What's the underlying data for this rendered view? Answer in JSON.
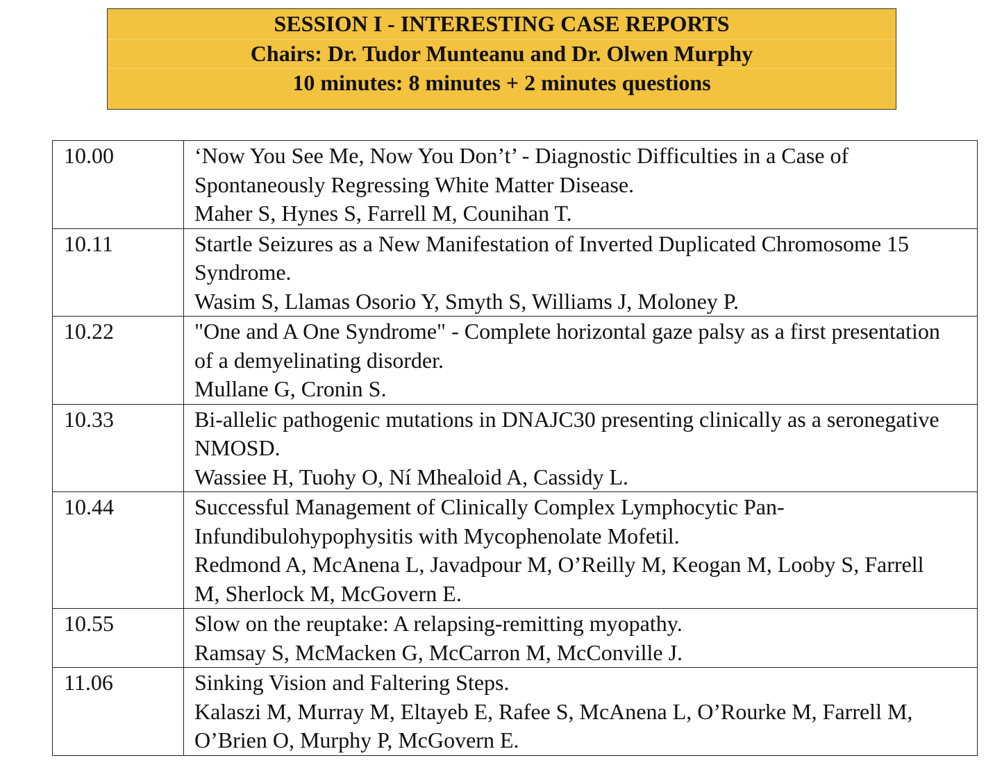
{
  "header": {
    "title": "SESSION I - INTERESTING CASE REPORTS",
    "chairs": "Chairs: Dr. Tudor Munteanu and Dr. Olwen Murphy",
    "format": "10 minutes: 8 minutes + 2 minutes questions"
  },
  "table": {
    "rows": [
      {
        "time": "10.00",
        "title": "‘Now You See Me, Now You Don’t’ - Diagnostic Difficulties in a Case of Spontaneously Regressing White Matter Disease.",
        "authors": "Maher S, Hynes S, Farrell M, Counihan T."
      },
      {
        "time": "10.11",
        "title": "Startle Seizures as a New Manifestation of Inverted Duplicated Chromosome 15 Syndrome.",
        "authors": "Wasim S, Llamas Osorio Y, Smyth S, Williams J, Moloney P."
      },
      {
        "time": "10.22",
        "title": "\"One and A One Syndrome\" - Complete horizontal gaze palsy as a first presentation of a demyelinating disorder.",
        "authors": "Mullane G, Cronin S."
      },
      {
        "time": "10.33",
        "title": "Bi-allelic pathogenic mutations in DNAJC30 presenting clinically as a seronegative NMOSD.",
        "authors": "Wassiee H, Tuohy O, Ní Mhealoid A, Cassidy L."
      },
      {
        "time": "10.44",
        "title": "Successful Management of Clinically Complex Lymphocytic Pan-Infundibulohypophysitis with Mycophenolate Mofetil.",
        "authors": "Redmond A, McAnena L, Javadpour M, O’Reilly M, Keogan M, Looby S, Farrell M, Sherlock M, McGovern E."
      },
      {
        "time": "10.55",
        "title": "Slow on the reuptake: A relapsing-remitting myopathy.",
        "authors": "Ramsay S, McMacken G, McCarron M, McConville J."
      },
      {
        "time": "11.06",
        "title": "Sinking Vision and Faltering Steps.",
        "authors": "Kalaszi M, Murray M, Eltayeb E, Rafee S, McAnena L, O’Rourke M, Farrell M, O’Brien O, Murphy P, McGovern E."
      }
    ]
  }
}
